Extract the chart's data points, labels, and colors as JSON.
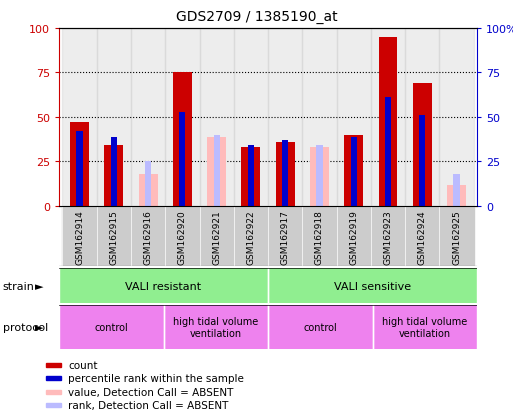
{
  "title": "GDS2709 / 1385190_at",
  "samples": [
    "GSM162914",
    "GSM162915",
    "GSM162916",
    "GSM162920",
    "GSM162921",
    "GSM162922",
    "GSM162917",
    "GSM162918",
    "GSM162919",
    "GSM162923",
    "GSM162924",
    "GSM162925"
  ],
  "count": [
    47,
    34,
    0,
    75,
    0,
    33,
    36,
    0,
    40,
    95,
    69,
    0
  ],
  "percentile_rank": [
    42,
    39,
    0,
    53,
    0,
    34,
    37,
    0,
    39,
    61,
    51,
    0
  ],
  "count_absent": [
    0,
    0,
    18,
    0,
    39,
    0,
    0,
    33,
    0,
    0,
    0,
    12
  ],
  "rank_absent": [
    0,
    0,
    25,
    0,
    40,
    0,
    0,
    34,
    0,
    0,
    0,
    18
  ],
  "strain_groups": [
    {
      "label": "VALI resistant",
      "start": 0,
      "end": 6,
      "color": "#90ee90"
    },
    {
      "label": "VALI sensitive",
      "start": 6,
      "end": 12,
      "color": "#90ee90"
    }
  ],
  "protocol_groups": [
    {
      "label": "control",
      "start": 0,
      "end": 3,
      "color": "#ee82ee"
    },
    {
      "label": "high tidal volume\nventilation",
      "start": 3,
      "end": 6,
      "color": "#ee82ee"
    },
    {
      "label": "control",
      "start": 6,
      "end": 9,
      "color": "#ee82ee"
    },
    {
      "label": "high tidal volume\nventilation",
      "start": 9,
      "end": 12,
      "color": "#ee82ee"
    }
  ],
  "count_color": "#cc0000",
  "rank_color": "#0000cc",
  "count_absent_color": "#ffbbbb",
  "rank_absent_color": "#bbbbff",
  "ylim": [
    0,
    100
  ],
  "yticks": [
    0,
    25,
    50,
    75,
    100
  ],
  "left_axis_color": "#cc0000",
  "right_axis_color": "#0000cc",
  "legend_items": [
    {
      "label": "count",
      "color": "#cc0000"
    },
    {
      "label": "percentile rank within the sample",
      "color": "#0000cc"
    },
    {
      "label": "value, Detection Call = ABSENT",
      "color": "#ffbbbb"
    },
    {
      "label": "rank, Detection Call = ABSENT",
      "color": "#bbbbff"
    }
  ]
}
